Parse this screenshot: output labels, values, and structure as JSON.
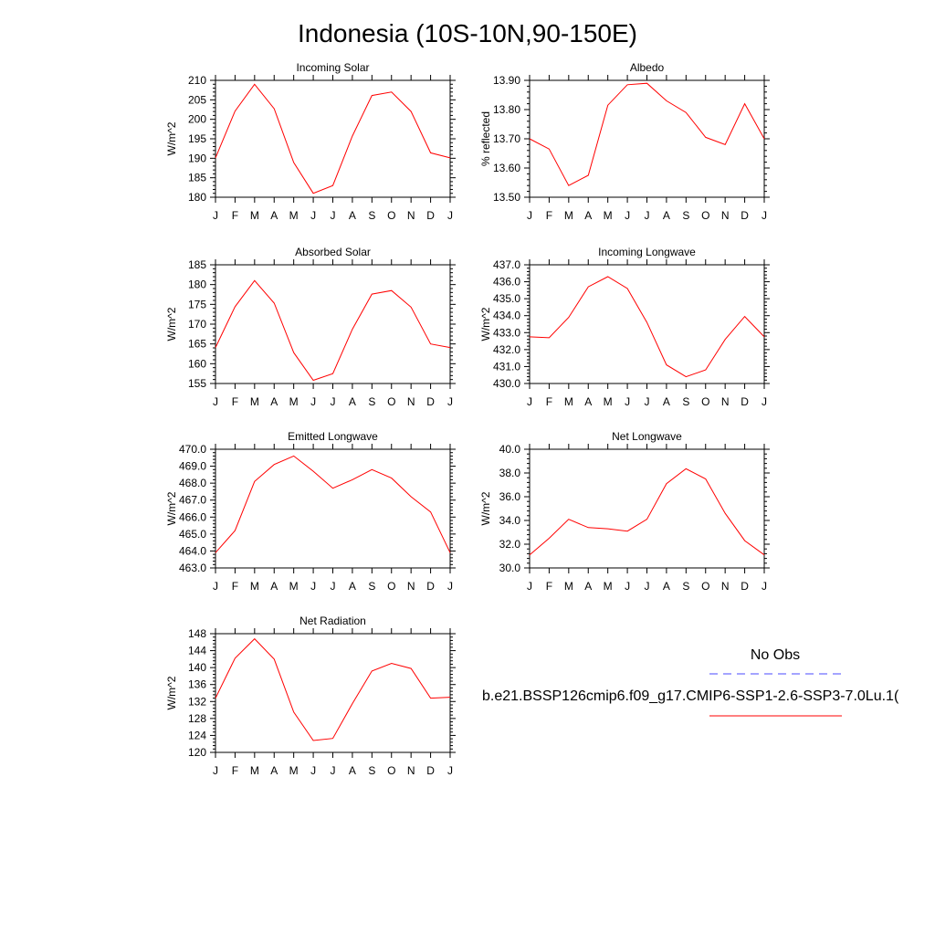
{
  "title": "Indonesia (10S-10N,90-150E)",
  "months": [
    "J",
    "F",
    "M",
    "A",
    "M",
    "J",
    "J",
    "A",
    "S",
    "O",
    "N",
    "D",
    "J"
  ],
  "line_color": "#ff0000",
  "obs_color": "#4a4aff",
  "legend": {
    "obs_label": "No Obs",
    "case_label": "b.e21.BSSP126cmip6.f09_g17.CMIP6-SSP1-2.6-SSP3-7.0Lu.1("
  },
  "chart_data": [
    {
      "type": "line",
      "title": "Incoming Solar",
      "ylabel": "W/m^2",
      "ylim": [
        180,
        210
      ],
      "yticks": [
        180,
        185,
        190,
        195,
        200,
        205,
        210
      ],
      "ytick_labels": [
        "180",
        "185",
        "190",
        "195",
        "200",
        "205",
        "210"
      ],
      "x": [
        "J",
        "F",
        "M",
        "A",
        "M",
        "J",
        "J",
        "A",
        "S",
        "O",
        "N",
        "D",
        "J"
      ],
      "values": [
        190.1,
        202.1,
        209.0,
        202.7,
        188.9,
        181.0,
        183.0,
        195.7,
        206.1,
        207.0,
        202.0,
        191.4,
        190.1
      ]
    },
    {
      "type": "line",
      "title": "Albedo",
      "ylabel": "% reflected",
      "ylim": [
        13.5,
        13.9
      ],
      "yticks": [
        13.5,
        13.6,
        13.7,
        13.8,
        13.9
      ],
      "ytick_labels": [
        "13.50",
        "13.60",
        "13.70",
        "13.80",
        "13.90"
      ],
      "x": [
        "J",
        "F",
        "M",
        "A",
        "M",
        "J",
        "J",
        "A",
        "S",
        "O",
        "N",
        "D",
        "J"
      ],
      "values": [
        13.7,
        13.665,
        13.54,
        13.575,
        13.815,
        13.885,
        13.89,
        13.83,
        13.79,
        13.705,
        13.68,
        13.82,
        13.7
      ]
    },
    {
      "type": "line",
      "title": "Absorbed Solar",
      "ylabel": "W/m^2",
      "ylim": [
        155,
        185
      ],
      "yticks": [
        155,
        160,
        165,
        170,
        175,
        180,
        185
      ],
      "ytick_labels": [
        "155",
        "160",
        "165",
        "170",
        "175",
        "180",
        "185"
      ],
      "x": [
        "J",
        "F",
        "M",
        "A",
        "M",
        "J",
        "J",
        "A",
        "S",
        "O",
        "N",
        "D",
        "J"
      ],
      "values": [
        164.1,
        174.4,
        181.0,
        175.3,
        162.8,
        155.8,
        157.5,
        168.7,
        177.6,
        178.5,
        174.3,
        165.0,
        164.1
      ]
    },
    {
      "type": "line",
      "title": "Incoming Longwave",
      "ylabel": "W/m^2",
      "ylim": [
        430,
        437
      ],
      "yticks": [
        430,
        431,
        432,
        433,
        434,
        435,
        436,
        437
      ],
      "ytick_labels": [
        "430.0",
        "431.0",
        "432.0",
        "433.0",
        "434.0",
        "435.0",
        "436.0",
        "437.0"
      ],
      "x": [
        "J",
        "F",
        "M",
        "A",
        "M",
        "J",
        "J",
        "A",
        "S",
        "O",
        "N",
        "D",
        "J"
      ],
      "values": [
        432.75,
        432.7,
        433.9,
        435.7,
        436.3,
        435.6,
        433.6,
        431.1,
        430.4,
        430.8,
        432.6,
        433.95,
        432.75
      ]
    },
    {
      "type": "line",
      "title": "Emitted Longwave",
      "ylabel": "W/m^2",
      "ylim": [
        463,
        470
      ],
      "yticks": [
        463,
        464,
        465,
        466,
        467,
        468,
        469,
        470
      ],
      "ytick_labels": [
        "463.0",
        "464.0",
        "465.0",
        "466.0",
        "467.0",
        "468.0",
        "469.0",
        "470.0"
      ],
      "x": [
        "J",
        "F",
        "M",
        "A",
        "M",
        "J",
        "J",
        "A",
        "S",
        "O",
        "N",
        "D",
        "J"
      ],
      "values": [
        463.9,
        465.2,
        468.1,
        469.1,
        469.6,
        468.7,
        467.7,
        468.2,
        468.8,
        468.3,
        467.2,
        466.3,
        463.9
      ]
    },
    {
      "type": "line",
      "title": "Net Longwave",
      "ylabel": "W/m^2",
      "ylim": [
        30,
        40
      ],
      "yticks": [
        30,
        32,
        34,
        36,
        38,
        40
      ],
      "ytick_labels": [
        "30.0",
        "32.0",
        "34.0",
        "36.0",
        "38.0",
        "40.0"
      ],
      "x": [
        "J",
        "F",
        "M",
        "A",
        "M",
        "J",
        "J",
        "A",
        "S",
        "O",
        "N",
        "D",
        "J"
      ],
      "values": [
        31.1,
        32.5,
        34.1,
        33.4,
        33.3,
        33.1,
        34.1,
        37.1,
        38.35,
        37.5,
        34.6,
        32.3,
        31.1
      ]
    },
    {
      "type": "line",
      "title": "Net Radiation",
      "ylabel": "W/m^2",
      "ylim": [
        120,
        148
      ],
      "yticks": [
        120,
        124,
        128,
        132,
        136,
        140,
        144,
        148
      ],
      "ytick_labels": [
        "120",
        "124",
        "128",
        "132",
        "136",
        "140",
        "144",
        "148"
      ],
      "x": [
        "J",
        "F",
        "M",
        "A",
        "M",
        "J",
        "J",
        "A",
        "S",
        "O",
        "N",
        "D",
        "J"
      ],
      "values": [
        132.8,
        142.2,
        146.8,
        142.0,
        129.5,
        122.8,
        123.3,
        131.5,
        139.2,
        141.0,
        139.8,
        132.8,
        133.0
      ]
    }
  ]
}
